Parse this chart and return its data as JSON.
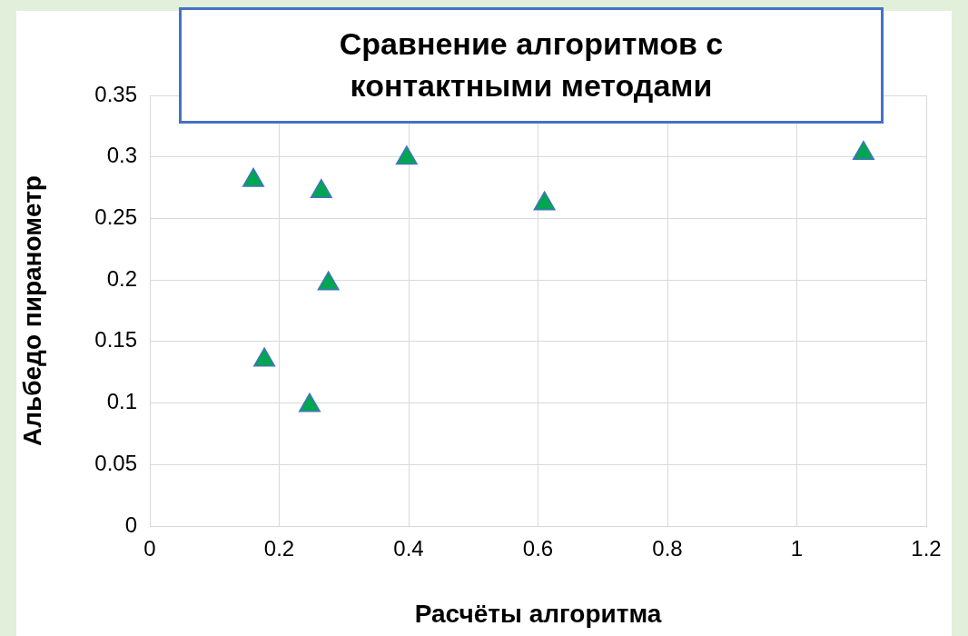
{
  "chart_data": {
    "type": "scatter",
    "title": "Сравнение алгоритмов с контактными методами",
    "xlabel": "Расчёты алгоритма",
    "ylabel": "Альбедо пиранометр",
    "x": [
      0.16,
      0.265,
      0.397,
      0.61,
      1.103,
      0.276,
      0.177,
      0.247
    ],
    "values": [
      0.281,
      0.272,
      0.299,
      0.262,
      0.303,
      0.197,
      0.135,
      0.098
    ],
    "color": "#00a650",
    "marker": "triangle",
    "grid": true,
    "xlim": [
      0,
      1.2
    ],
    "xticks": [
      0,
      0.2,
      0.4,
      0.6,
      0.8,
      1,
      1.2
    ],
    "ylim": [
      0,
      0.35
    ],
    "yticks": [
      0,
      0.05,
      0.1,
      0.15,
      0.2,
      0.25,
      0.3,
      0.35
    ]
  }
}
